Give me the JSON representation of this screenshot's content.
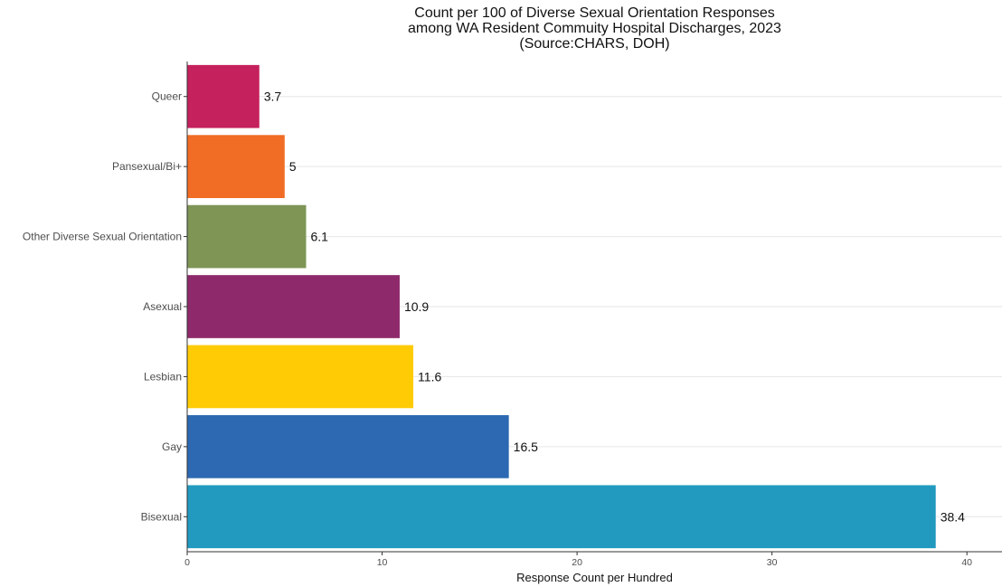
{
  "chart_data": {
    "type": "bar",
    "orientation": "horizontal",
    "title_lines": [
      "Count per 100 of Diverse Sexual Orientation Responses",
      "among WA Resident Commuity Hospital Discharges, 2023",
      "(Source:CHARS, DOH)"
    ],
    "xlabel": "Response Count per Hundred",
    "ylabel": "",
    "categories": [
      "Queer",
      "Pansexual/Bi+",
      "Other Diverse Sexual Orientation",
      "Asexual",
      "Lesbian",
      "Gay",
      "Bisexual"
    ],
    "values": [
      3.7,
      5,
      6.1,
      10.9,
      11.6,
      16.5,
      38.4
    ],
    "value_labels": [
      "3.7",
      "5",
      "6.1",
      "10.9",
      "11.6",
      "16.5",
      "38.4"
    ],
    "colors": [
      "#C5215D",
      "#F16C24",
      "#7E9556",
      "#8E2A6B",
      "#FFCB05",
      "#2D69B2",
      "#229ABF"
    ],
    "xlim": [
      0,
      41.8
    ],
    "xticks": [
      0,
      10,
      20,
      30,
      40
    ],
    "grid": "horizontal-major",
    "legend": "none"
  }
}
